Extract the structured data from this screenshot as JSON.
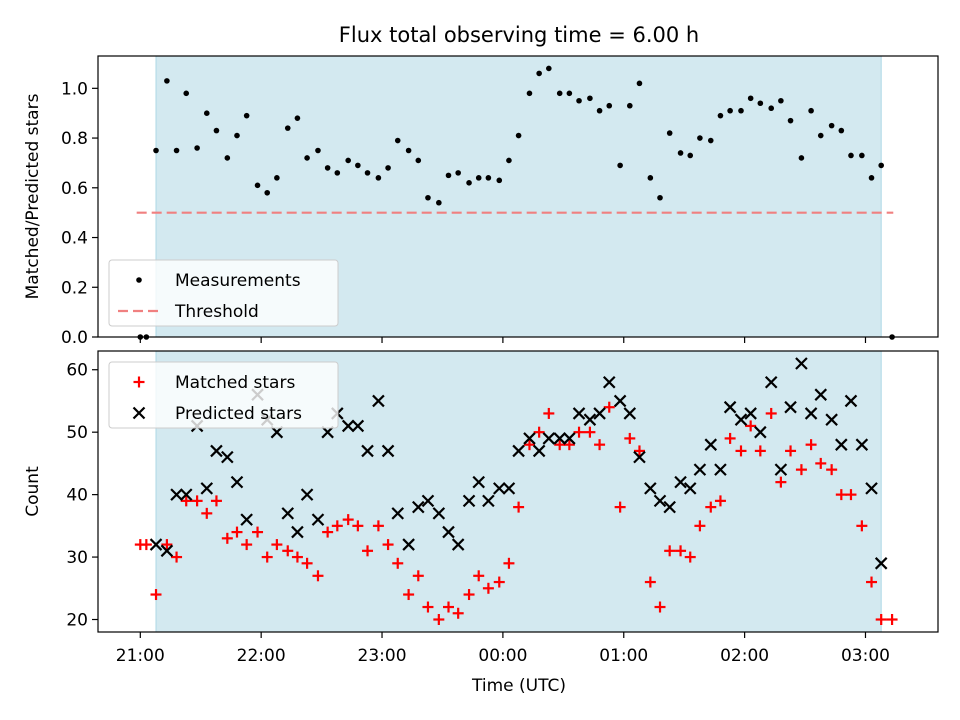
{
  "title": "Flux total observing time = 6.00 h",
  "xlabel": "Time (UTC)",
  "x_ticks": [
    "21:00",
    "22:00",
    "23:00",
    "00:00",
    "01:00",
    "02:00",
    "03:00"
  ],
  "colors": {
    "band": "#d3e9f0",
    "band_edge": "#add8e6",
    "measurement": "#000000",
    "threshold": "#f08080",
    "matched": "#ff0000",
    "predicted": "#000000"
  },
  "chart_data": [
    {
      "type": "scatter",
      "ylabel": "Matched/Predicted stars",
      "xlim": [
        -0.35,
        6.6
      ],
      "ylim": [
        0,
        1.13
      ],
      "y_ticks": [
        "0.0",
        "0.2",
        "0.4",
        "0.6",
        "0.8",
        "1.0"
      ],
      "observing_window": [
        0.13,
        6.13
      ],
      "legend_position": "lower-left",
      "grid": false,
      "series": [
        {
          "name": "Measurements",
          "marker": "dot",
          "x": [
            0.0,
            0.05,
            0.13,
            0.22,
            0.3,
            0.38,
            0.47,
            0.55,
            0.63,
            0.72,
            0.8,
            0.88,
            0.97,
            1.05,
            1.13,
            1.22,
            1.3,
            1.38,
            1.47,
            1.55,
            1.63,
            1.72,
            1.8,
            1.88,
            1.97,
            2.05,
            2.13,
            2.22,
            2.3,
            2.38,
            2.47,
            2.55,
            2.63,
            2.72,
            2.8,
            2.88,
            2.97,
            3.05,
            3.13,
            3.22,
            3.3,
            3.38,
            3.47,
            3.55,
            3.63,
            3.72,
            3.8,
            3.88,
            3.97,
            4.05,
            4.13,
            4.22,
            4.3,
            4.38,
            4.47,
            4.55,
            4.63,
            4.72,
            4.8,
            4.88,
            4.97,
            5.05,
            5.13,
            5.22,
            5.3,
            5.38,
            5.47,
            5.55,
            5.63,
            5.72,
            5.8,
            5.88,
            5.97,
            6.05,
            6.13,
            6.22
          ],
          "y": [
            0.0,
            0.0,
            0.75,
            1.03,
            0.75,
            0.98,
            0.76,
            0.9,
            0.83,
            0.72,
            0.81,
            0.89,
            0.61,
            0.58,
            0.64,
            0.84,
            0.88,
            0.72,
            0.75,
            0.68,
            0.66,
            0.71,
            0.69,
            0.66,
            0.64,
            0.68,
            0.79,
            0.75,
            0.71,
            0.56,
            0.54,
            0.65,
            0.66,
            0.62,
            0.64,
            0.64,
            0.63,
            0.71,
            0.81,
            0.98,
            1.06,
            1.08,
            0.98,
            0.98,
            0.95,
            0.96,
            0.91,
            0.93,
            0.69,
            0.93,
            1.02,
            0.64,
            0.56,
            0.82,
            0.74,
            0.73,
            0.8,
            0.79,
            0.89,
            0.91,
            0.91,
            0.96,
            0.94,
            0.92,
            0.95,
            0.87,
            0.72,
            0.91,
            0.81,
            0.85,
            0.83,
            0.73,
            0.73,
            0.64,
            0.69,
            0.0
          ]
        },
        {
          "name": "Threshold",
          "type": "hline",
          "style": "dashed",
          "y": 0.5,
          "x_range": [
            -0.03,
            6.23
          ]
        }
      ]
    },
    {
      "type": "scatter",
      "ylabel": "Count",
      "xlim": [
        -0.35,
        6.6
      ],
      "ylim": [
        18,
        63
      ],
      "y_ticks": [
        "20",
        "30",
        "40",
        "50",
        "60"
      ],
      "observing_window": [
        0.13,
        6.13
      ],
      "legend_position": "upper-left",
      "grid": false,
      "series": [
        {
          "name": "Matched stars",
          "marker": "plus",
          "x": [
            0.0,
            0.05,
            0.13,
            0.22,
            0.3,
            0.38,
            0.47,
            0.55,
            0.63,
            0.72,
            0.8,
            0.88,
            0.97,
            1.05,
            1.13,
            1.22,
            1.3,
            1.38,
            1.47,
            1.55,
            1.63,
            1.72,
            1.8,
            1.88,
            1.97,
            2.05,
            2.13,
            2.22,
            2.3,
            2.38,
            2.47,
            2.55,
            2.63,
            2.72,
            2.8,
            2.88,
            2.97,
            3.05,
            3.13,
            3.22,
            3.3,
            3.38,
            3.47,
            3.55,
            3.63,
            3.72,
            3.8,
            3.88,
            3.97,
            4.05,
            4.13,
            4.22,
            4.3,
            4.38,
            4.47,
            4.55,
            4.63,
            4.72,
            4.8,
            4.88,
            4.97,
            5.05,
            5.13,
            5.22,
            5.3,
            5.38,
            5.47,
            5.55,
            5.63,
            5.72,
            5.8,
            5.88,
            5.97,
            6.05,
            6.13,
            6.22
          ],
          "y": [
            32,
            32,
            24,
            32,
            30,
            39,
            39,
            37,
            39,
            33,
            34,
            32,
            34,
            30,
            32,
            31,
            30,
            29,
            27,
            34,
            35,
            36,
            35,
            31,
            35,
            32,
            29,
            24,
            27,
            22,
            20,
            22,
            21,
            24,
            27,
            25,
            26,
            29,
            38,
            48,
            50,
            53,
            48,
            48,
            50,
            50,
            48,
            54,
            38,
            49,
            47,
            26,
            22,
            31,
            31,
            30,
            35,
            38,
            39,
            49,
            47,
            51,
            47,
            53,
            42,
            47,
            44,
            48,
            45,
            44,
            40,
            40,
            35,
            26,
            20,
            20
          ]
        },
        {
          "name": "Predicted stars",
          "marker": "x",
          "x": [
            0.13,
            0.22,
            0.3,
            0.38,
            0.47,
            0.55,
            0.63,
            0.72,
            0.8,
            0.88,
            0.97,
            1.05,
            1.13,
            1.22,
            1.3,
            1.38,
            1.47,
            1.55,
            1.63,
            1.72,
            1.8,
            1.88,
            1.97,
            2.05,
            2.13,
            2.22,
            2.3,
            2.38,
            2.47,
            2.55,
            2.63,
            2.72,
            2.8,
            2.88,
            2.97,
            3.05,
            3.13,
            3.22,
            3.3,
            3.38,
            3.47,
            3.55,
            3.63,
            3.72,
            3.8,
            3.88,
            3.97,
            4.05,
            4.13,
            4.22,
            4.3,
            4.38,
            4.47,
            4.55,
            4.63,
            4.72,
            4.8,
            4.88,
            4.97,
            5.05,
            5.13,
            5.22,
            5.3,
            5.38,
            5.47,
            5.55,
            5.63,
            5.72,
            5.8,
            5.88,
            5.97,
            6.05,
            6.13
          ],
          "y": [
            32,
            31,
            40,
            40,
            51,
            41,
            47,
            46,
            42,
            36,
            56,
            52,
            50,
            37,
            34,
            40,
            36,
            50,
            53,
            51,
            51,
            47,
            55,
            47,
            37,
            32,
            38,
            39,
            37,
            34,
            32,
            39,
            42,
            39,
            41,
            41,
            47,
            49,
            47,
            49,
            49,
            49,
            53,
            52,
            53,
            58,
            55,
            53,
            46,
            41,
            39,
            38,
            42,
            41,
            44,
            48,
            44,
            54,
            52,
            53,
            50,
            58,
            44,
            54,
            61,
            53,
            56,
            52,
            48,
            55,
            48,
            41,
            29
          ]
        }
      ]
    }
  ]
}
